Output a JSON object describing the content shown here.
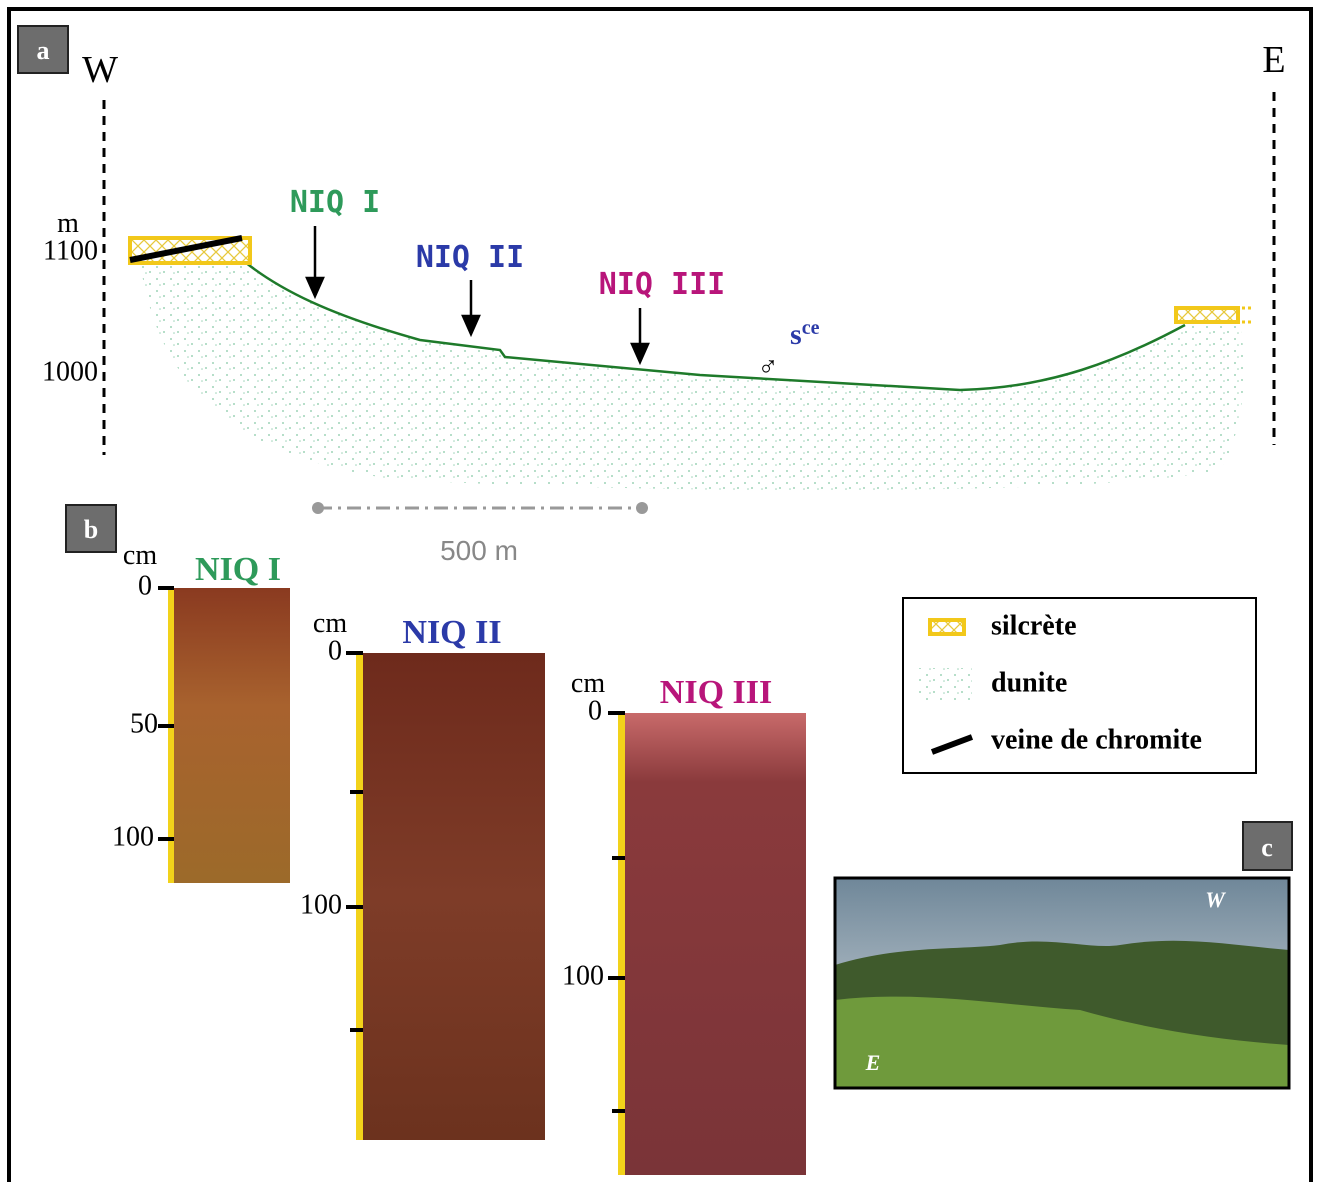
{
  "panel_a": {
    "label": "a",
    "west": "W",
    "east": "E",
    "elevation_unit": "m",
    "elevation_ticks": [
      "1100",
      "1000"
    ],
    "profiles": [
      "NIQ I",
      "NIQ II",
      "NIQ III"
    ],
    "site": {
      "base": "s",
      "sup": "ce",
      "symbol": "♂"
    },
    "scale_bar": "500 m"
  },
  "panel_b": {
    "label": "b",
    "columns": [
      {
        "title": "NIQ I",
        "unit": "cm",
        "ticks": [
          "0",
          "50",
          "100"
        ]
      },
      {
        "title": "NIQ II",
        "unit": "cm",
        "ticks": [
          "0",
          "100"
        ]
      },
      {
        "title": "NIQ III",
        "unit": "cm",
        "ticks": [
          "0",
          "100"
        ]
      }
    ]
  },
  "legend": [
    "silcrète",
    "dunite",
    "veine de chromite"
  ],
  "panel_c": {
    "label": "c",
    "west": "W",
    "east": "E"
  }
}
